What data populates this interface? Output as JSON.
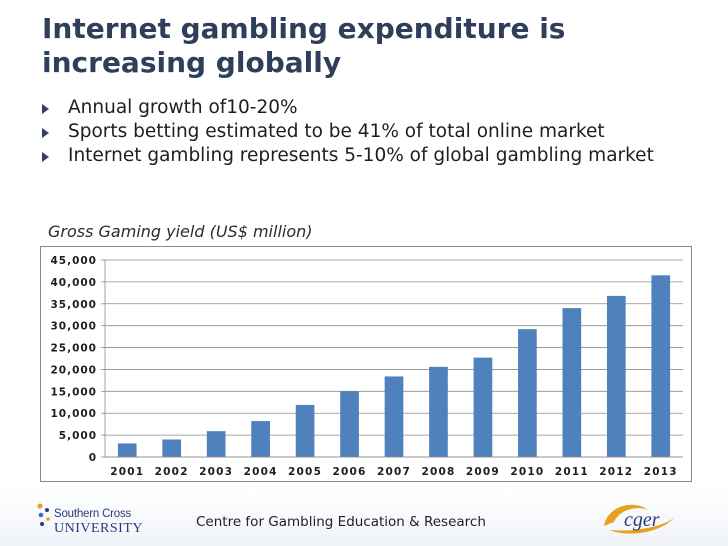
{
  "slide": {
    "title": "Internet gambling expenditure is increasing globally",
    "bullets": [
      "Annual growth of10-20%",
      "Sports betting estimated to be 41% of total online market",
      "Internet gambling represents 5-10% of global gambling market"
    ],
    "chart_label": "Gross Gaming yield (US$ million)"
  },
  "footer": {
    "centre_name": "Centre for Gambling Education & Research",
    "university_line1": "Southern Cross",
    "university_line2": "UNIVERSITY",
    "cger_logo_text": "cger"
  },
  "colors": {
    "bar": "#4f81bd",
    "title": "#2f3e5b"
  },
  "chart_data": {
    "type": "bar",
    "title": "",
    "xlabel": "",
    "ylabel": "",
    "categories": [
      "2001",
      "2002",
      "2003",
      "2004",
      "2005",
      "2006",
      "2007",
      "2008",
      "2009",
      "2010",
      "2011",
      "2012",
      "2013"
    ],
    "values": [
      3100,
      4000,
      5900,
      8200,
      11900,
      15000,
      18400,
      20600,
      22700,
      29200,
      34000,
      36800,
      41500
    ],
    "ylim": [
      0,
      45000
    ],
    "yticks": [
      0,
      5000,
      10000,
      15000,
      20000,
      25000,
      30000,
      35000,
      40000,
      45000
    ],
    "ytick_labels": [
      "0",
      "5,000",
      "10,000",
      "15,000",
      "20,000",
      "25,000",
      "30,000",
      "35,000",
      "40,000",
      "45,000"
    ],
    "grid": true,
    "legend": "none"
  }
}
